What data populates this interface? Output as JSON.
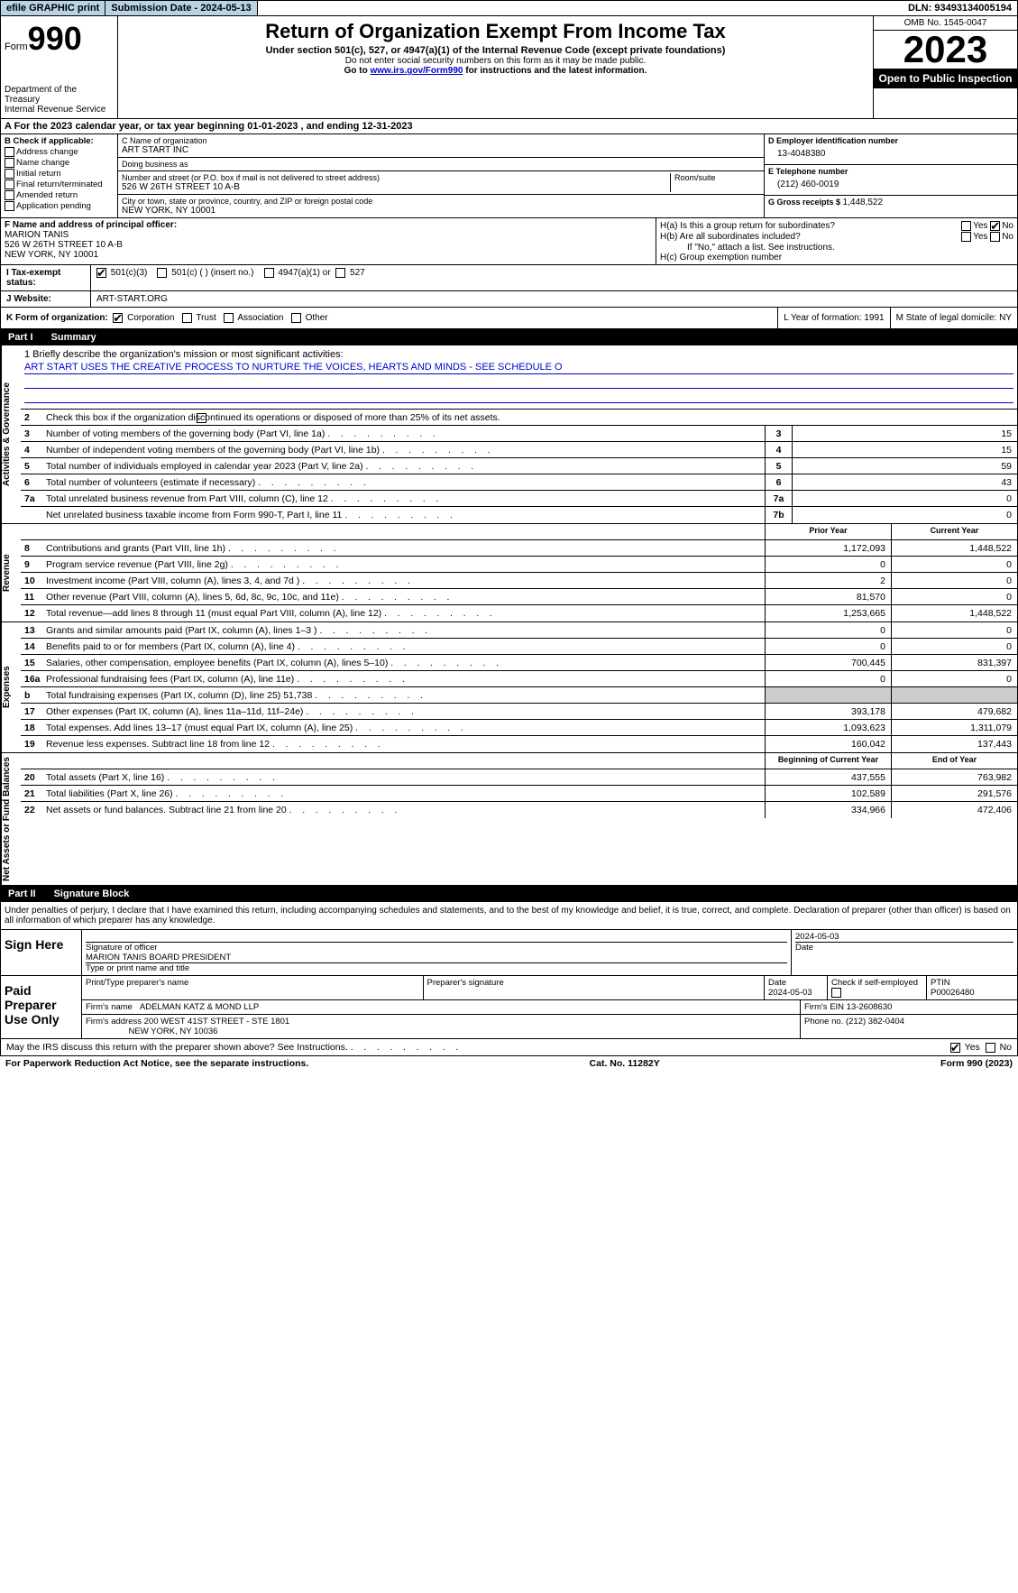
{
  "topbar": {
    "efile": "efile GRAPHIC print",
    "submission": "Submission Date - 2024-05-13",
    "dln": "DLN: 93493134005194"
  },
  "header": {
    "form_label": "Form",
    "form_num": "990",
    "title": "Return of Organization Exempt From Income Tax",
    "subtitle": "Under section 501(c), 527, or 4947(a)(1) of the Internal Revenue Code (except private foundations)",
    "warn": "Do not enter social security numbers on this form as it may be made public.",
    "goto": "Go to ",
    "goto_link": "www.irs.gov/Form990",
    "goto_tail": " for instructions and the latest information.",
    "dept": "Department of the Treasury\nInternal Revenue Service",
    "omb": "OMB No. 1545-0047",
    "year": "2023",
    "inspection": "Open to Public Inspection"
  },
  "taxyear": "A For the 2023 calendar year, or tax year beginning 01-01-2023   , and ending 12-31-2023",
  "boxB": {
    "label": "B Check if applicable:",
    "items": [
      "Address change",
      "Name change",
      "Initial return",
      "Final return/terminated",
      "Amended return",
      "Application pending"
    ]
  },
  "boxC": {
    "name_label": "C Name of organization",
    "name": "ART START INC",
    "dba_label": "Doing business as",
    "dba": "",
    "addr_label": "Number and street (or P.O. box if mail is not delivered to street address)",
    "addr": "526 W 26TH STREET 10 A-B",
    "room_label": "Room/suite",
    "city_label": "City or town, state or province, country, and ZIP or foreign postal code",
    "city": "NEW YORK, NY  10001"
  },
  "boxD": {
    "label": "D Employer identification number",
    "val": "13-4048380"
  },
  "boxE": {
    "label": "E Telephone number",
    "val": "(212) 460-0019"
  },
  "boxG": {
    "label": "G Gross receipts $ ",
    "val": "1,448,522"
  },
  "boxF": {
    "label": "F  Name and address of principal officer:",
    "name": "MARION TANIS",
    "addr1": "526 W 26TH STREET 10 A-B",
    "addr2": "NEW YORK, NY  10001"
  },
  "boxH": {
    "a": "H(a)  Is this a group return for subordinates?",
    "b": "H(b)  Are all subordinates included?",
    "b_note": "If \"No,\" attach a list. See instructions.",
    "c": "H(c)  Group exemption number"
  },
  "rowI": {
    "label": "I   Tax-exempt status:",
    "c1": "501(c)(3)",
    "c2": "501(c) (  ) (insert no.)",
    "c3": "4947(a)(1) or",
    "c4": "527"
  },
  "rowJ": {
    "label": "J   Website:",
    "val": "ART-START.ORG"
  },
  "rowK": {
    "label": "K Form of organization:",
    "opts": [
      "Corporation",
      "Trust",
      "Association",
      "Other"
    ],
    "L": "L Year of formation: 1991",
    "M": "M State of legal domicile: NY"
  },
  "part1_title": "Part I",
  "part1_name": "Summary",
  "mission_label": "1  Briefly describe the organization's mission or most significant activities:",
  "mission_text": "ART START USES THE CREATIVE PROCESS TO NURTURE THE VOICES, HEARTS AND MINDS - SEE SCHEDULE O",
  "line2": "Check this box      if the organization discontinued its operations or disposed of more than 25% of its net assets.",
  "summary_lines_single": [
    {
      "n": "3",
      "d": "Number of voting members of the governing body (Part VI, line 1a)",
      "box": "3",
      "v": "15"
    },
    {
      "n": "4",
      "d": "Number of independent voting members of the governing body (Part VI, line 1b)",
      "box": "4",
      "v": "15"
    },
    {
      "n": "5",
      "d": "Total number of individuals employed in calendar year 2023 (Part V, line 2a)",
      "box": "5",
      "v": "59"
    },
    {
      "n": "6",
      "d": "Total number of volunteers (estimate if necessary)",
      "box": "6",
      "v": "43"
    },
    {
      "n": "7a",
      "d": "Total unrelated business revenue from Part VIII, column (C), line 12",
      "box": "7a",
      "v": "0"
    },
    {
      "n": "",
      "d": "Net unrelated business taxable income from Form 990-T, Part I, line 11",
      "box": "7b",
      "v": "0"
    }
  ],
  "col_headers": {
    "prior": "Prior Year",
    "current": "Current Year"
  },
  "revenue_lines": [
    {
      "n": "8",
      "d": "Contributions and grants (Part VIII, line 1h)",
      "p": "1,172,093",
      "c": "1,448,522"
    },
    {
      "n": "9",
      "d": "Program service revenue (Part VIII, line 2g)",
      "p": "0",
      "c": "0"
    },
    {
      "n": "10",
      "d": "Investment income (Part VIII, column (A), lines 3, 4, and 7d )",
      "p": "2",
      "c": "0"
    },
    {
      "n": "11",
      "d": "Other revenue (Part VIII, column (A), lines 5, 6d, 8c, 9c, 10c, and 11e)",
      "p": "81,570",
      "c": "0"
    },
    {
      "n": "12",
      "d": "Total revenue—add lines 8 through 11 (must equal Part VIII, column (A), line 12)",
      "p": "1,253,665",
      "c": "1,448,522"
    }
  ],
  "expense_lines": [
    {
      "n": "13",
      "d": "Grants and similar amounts paid (Part IX, column (A), lines 1–3 )",
      "p": "0",
      "c": "0"
    },
    {
      "n": "14",
      "d": "Benefits paid to or for members (Part IX, column (A), line 4)",
      "p": "0",
      "c": "0"
    },
    {
      "n": "15",
      "d": "Salaries, other compensation, employee benefits (Part IX, column (A), lines 5–10)",
      "p": "700,445",
      "c": "831,397"
    },
    {
      "n": "16a",
      "d": "Professional fundraising fees (Part IX, column (A), line 11e)",
      "p": "0",
      "c": "0"
    },
    {
      "n": "b",
      "d": "Total fundraising expenses (Part IX, column (D), line 25) 51,738",
      "p": "",
      "c": "",
      "shade": true
    },
    {
      "n": "17",
      "d": "Other expenses (Part IX, column (A), lines 11a–11d, 11f–24e)",
      "p": "393,178",
      "c": "479,682"
    },
    {
      "n": "18",
      "d": "Total expenses. Add lines 13–17 (must equal Part IX, column (A), line 25)",
      "p": "1,093,623",
      "c": "1,311,079"
    },
    {
      "n": "19",
      "d": "Revenue less expenses. Subtract line 18 from line 12",
      "p": "160,042",
      "c": "137,443"
    }
  ],
  "net_headers": {
    "begin": "Beginning of Current Year",
    "end": "End of Year"
  },
  "net_lines": [
    {
      "n": "20",
      "d": "Total assets (Part X, line 16)",
      "p": "437,555",
      "c": "763,982"
    },
    {
      "n": "21",
      "d": "Total liabilities (Part X, line 26)",
      "p": "102,589",
      "c": "291,576"
    },
    {
      "n": "22",
      "d": "Net assets or fund balances. Subtract line 21 from line 20",
      "p": "334,966",
      "c": "472,406"
    }
  ],
  "part2_title": "Part II",
  "part2_name": "Signature Block",
  "sig_intro": "Under penalties of perjury, I declare that I have examined this return, including accompanying schedules and statements, and to the best of my knowledge and belief, it is true, correct, and complete. Declaration of preparer (other than officer) is based on all information of which preparer has any knowledge.",
  "sign_here": "Sign Here",
  "sig_officer_label": "Signature of officer",
  "sig_officer": "MARION TANIS BOARD PRESIDENT",
  "sig_name_label": "Type or print name and title",
  "sig_date_label": "Date",
  "sig_date": "2024-05-03",
  "paid_label": "Paid Preparer Use Only",
  "prep": {
    "name_label": "Print/Type preparer's name",
    "sig_label": "Preparer's signature",
    "date_label": "Date",
    "date": "2024-05-03",
    "check_label": "Check        if self-employed",
    "ptin_label": "PTIN",
    "ptin": "P00026480",
    "firm_name_label": "Firm's name",
    "firm_name": "ADELMAN KATZ & MOND LLP",
    "firm_ein_label": "Firm's EIN",
    "firm_ein": "13-2608630",
    "firm_addr_label": "Firm's address",
    "firm_addr1": "200 WEST 41ST STREET - STE 1801",
    "firm_addr2": "NEW YORK, NY  10036",
    "phone_label": "Phone no.",
    "phone": "(212) 382-0404"
  },
  "discuss": "May the IRS discuss this return with the preparer shown above? See Instructions.",
  "footer": {
    "left": "For Paperwork Reduction Act Notice, see the separate instructions.",
    "mid": "Cat. No. 11282Y",
    "right": "Form 990 (2023)"
  },
  "vtabs": {
    "gov": "Activities & Governance",
    "rev": "Revenue",
    "exp": "Expenses",
    "net": "Net Assets or Fund Balances"
  },
  "yn": {
    "yes": "Yes",
    "no": "No"
  }
}
